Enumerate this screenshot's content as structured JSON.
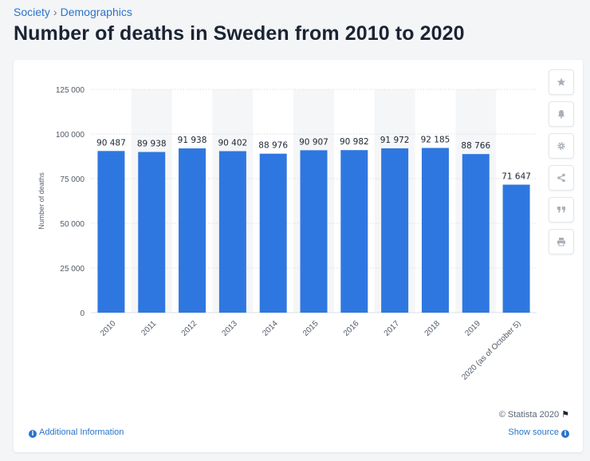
{
  "breadcrumb": {
    "items": [
      "Society",
      "Demographics"
    ],
    "separator": "›"
  },
  "page_title": "Number of deaths in Sweden from 2010 to 2020",
  "tools": [
    {
      "name": "favorite",
      "icon": "star-icon"
    },
    {
      "name": "alert",
      "icon": "bell-icon"
    },
    {
      "name": "settings",
      "icon": "gear-icon"
    },
    {
      "name": "share",
      "icon": "share-icon"
    },
    {
      "name": "cite",
      "icon": "quote-icon"
    },
    {
      "name": "print",
      "icon": "printer-icon"
    }
  ],
  "footer": {
    "copyright": "© Statista 2020",
    "additional_info": "Additional Information",
    "show_source": "Show source",
    "info_glyph": "i",
    "flag_glyph": "⚑"
  },
  "colors": {
    "bar": "#2f77e0",
    "accent": "#2a74c9",
    "band": "#f5f6f7"
  },
  "chart_data": {
    "type": "bar",
    "title": "",
    "xlabel": "",
    "ylabel": "Number of deaths",
    "categories": [
      "2010",
      "2011",
      "2012",
      "2013",
      "2014",
      "2015",
      "2016",
      "2017",
      "2018",
      "2019",
      "2020 (as of October 5)"
    ],
    "values": [
      90487,
      89938,
      91938,
      90402,
      88976,
      90907,
      90982,
      91972,
      92185,
      88766,
      71647
    ],
    "value_labels": [
      "90 487",
      "89 938",
      "91 938",
      "90 402",
      "88 976",
      "90 907",
      "90 982",
      "91 972",
      "92 185",
      "88 766",
      "71 647"
    ],
    "ylim": [
      0,
      125000
    ],
    "yticks": [
      0,
      25000,
      50000,
      75000,
      100000,
      125000
    ],
    "ytick_labels": [
      "0",
      "25 000",
      "50 000",
      "75 000",
      "100 000",
      "125 000"
    ],
    "grid": true,
    "legend": "none"
  }
}
